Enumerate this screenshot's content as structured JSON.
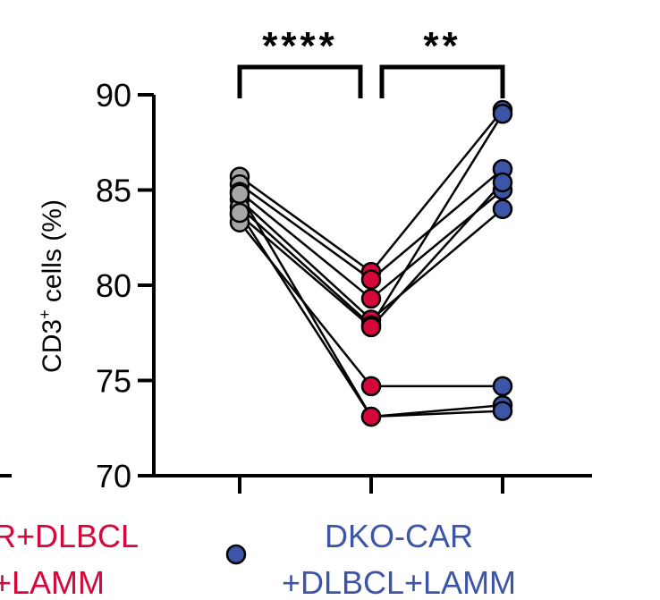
{
  "chart_data": {
    "type": "scatter",
    "ylabel_main": "CD3",
    "ylabel_sup": "+",
    "ylabel_rest": " cells (%)",
    "ylim": [
      70,
      90
    ],
    "yticks": [
      "70",
      "75",
      "80",
      "85",
      "90"
    ],
    "grid": false,
    "groups": [
      {
        "color": "#a6a6a6"
      },
      {
        "color": "#d6083b"
      },
      {
        "color": "#3d55a6"
      }
    ],
    "paired_points": [
      [
        85.7,
        80.7,
        89.2
      ],
      [
        85.3,
        80.3,
        86.1
      ],
      [
        84.9,
        79.3,
        85.0
      ],
      [
        84.5,
        78.2,
        84.0
      ],
      [
        84.1,
        77.9,
        89.0
      ],
      [
        83.7,
        77.8,
        85.4
      ],
      [
        83.3,
        74.7,
        74.7
      ],
      [
        83.8,
        73.1,
        73.7
      ],
      [
        84.8,
        73.1,
        73.4
      ]
    ],
    "significance": [
      {
        "label": "****",
        "from": 0,
        "to": 1
      },
      {
        "label": "**",
        "from": 1,
        "to": 2
      }
    ],
    "legend": [
      {
        "line1": "R+DLBCL",
        "line2": "+LAMM",
        "color": "#d6083b",
        "marker": false
      },
      {
        "line1": "DKO-CAR",
        "line2": "+DLBCL+LAMM",
        "color": "#3d55a6",
        "marker": true
      }
    ]
  }
}
